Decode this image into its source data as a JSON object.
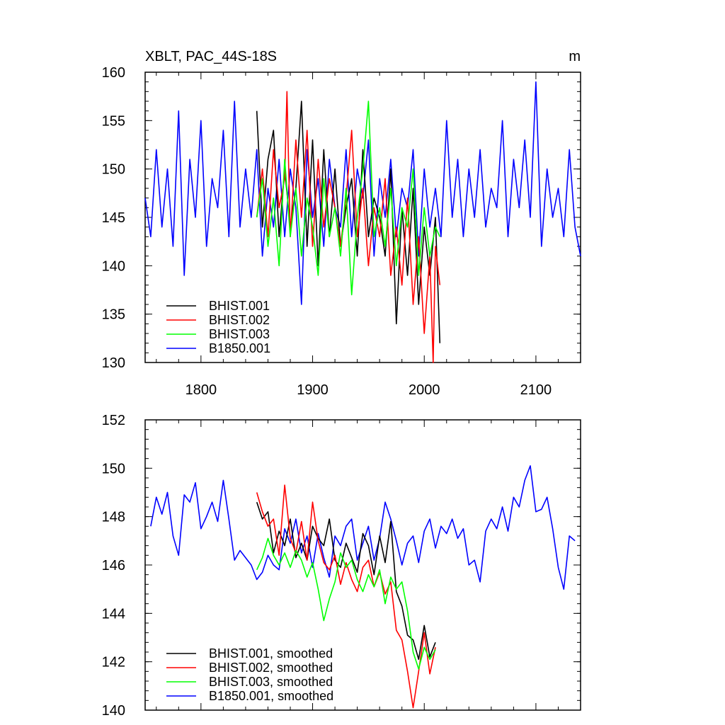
{
  "chart_data": [
    {
      "type": "line",
      "title": "XBLT, PAC_44S-18S",
      "units": "m",
      "xlim": [
        1750,
        2140
      ],
      "ylim": [
        130,
        160
      ],
      "xticks": [
        1800,
        1900,
        2000,
        2100
      ],
      "yticks": [
        130,
        135,
        140,
        145,
        150,
        155,
        160
      ],
      "legend_position": "bottom-left",
      "series": [
        {
          "name": "BHIST.001",
          "color": "#000000",
          "x": [
            1850,
            1855,
            1860,
            1865,
            1870,
            1875,
            1880,
            1885,
            1890,
            1895,
            1900,
            1905,
            1910,
            1915,
            1920,
            1925,
            1930,
            1935,
            1940,
            1945,
            1950,
            1955,
            1960,
            1965,
            1970,
            1975,
            1980,
            1985,
            1990,
            1995,
            2000,
            2005,
            2010,
            2014
          ],
          "y": [
            156,
            144,
            151,
            154,
            143,
            150,
            144,
            148,
            157,
            142,
            153,
            140,
            152,
            143,
            150,
            142,
            146,
            149,
            141,
            152,
            143,
            147,
            145,
            141,
            150,
            134,
            146,
            139,
            148,
            136,
            144,
            139,
            145,
            132
          ]
        },
        {
          "name": "BHIST.002",
          "color": "#ff0000",
          "x": [
            1850,
            1855,
            1860,
            1865,
            1870,
            1875,
            1877,
            1880,
            1885,
            1890,
            1895,
            1900,
            1905,
            1910,
            1915,
            1920,
            1925,
            1930,
            1935,
            1940,
            1945,
            1950,
            1955,
            1960,
            1965,
            1970,
            1975,
            1980,
            1985,
            1990,
            1995,
            2000,
            2005,
            2008,
            2010,
            2014
          ],
          "y": [
            145,
            150,
            143,
            152,
            146,
            149,
            158,
            143,
            153,
            145,
            154,
            142,
            151,
            144,
            149,
            146,
            142,
            147,
            154,
            143,
            148,
            140,
            146,
            143,
            149,
            139,
            144,
            138,
            147,
            136,
            143,
            133,
            141,
            130,
            142,
            138
          ]
        },
        {
          "name": "BHIST.003",
          "color": "#00ff00",
          "x": [
            1850,
            1855,
            1860,
            1865,
            1870,
            1875,
            1880,
            1885,
            1890,
            1895,
            1900,
            1905,
            1910,
            1915,
            1920,
            1925,
            1930,
            1935,
            1940,
            1945,
            1950,
            1955,
            1960,
            1965,
            1970,
            1975,
            1980,
            1985,
            1990,
            1995,
            2000,
            2005,
            2010,
            2014
          ],
          "y": [
            145,
            149,
            142,
            147,
            140,
            151,
            143,
            148,
            141,
            147,
            144,
            139,
            149,
            143,
            146,
            141,
            148,
            137,
            145,
            150,
            157,
            143,
            146,
            142,
            148,
            140,
            146,
            144,
            150,
            139,
            146,
            141,
            144,
            143
          ]
        },
        {
          "name": "B1850.001",
          "color": "#0000ff",
          "x": [
            1750,
            1755,
            1760,
            1765,
            1770,
            1775,
            1780,
            1785,
            1790,
            1795,
            1800,
            1805,
            1810,
            1815,
            1820,
            1825,
            1830,
            1835,
            1840,
            1845,
            1850,
            1855,
            1860,
            1865,
            1870,
            1875,
            1880,
            1885,
            1890,
            1895,
            1900,
            1905,
            1910,
            1915,
            1920,
            1925,
            1930,
            1935,
            1940,
            1945,
            1950,
            1955,
            1960,
            1965,
            1970,
            1975,
            1980,
            1985,
            1990,
            1995,
            2000,
            2005,
            2010,
            2015,
            2020,
            2025,
            2030,
            2035,
            2040,
            2045,
            2050,
            2055,
            2060,
            2065,
            2070,
            2075,
            2080,
            2085,
            2090,
            2095,
            2100,
            2105,
            2110,
            2115,
            2120,
            2125,
            2130,
            2135,
            2140
          ],
          "y": [
            147,
            143,
            152,
            144,
            150,
            142,
            156,
            139,
            151,
            145,
            155,
            142,
            149,
            146,
            154,
            143,
            157,
            144,
            150,
            145,
            152,
            141,
            148,
            144,
            151,
            143,
            150,
            146,
            136,
            152,
            145,
            149,
            142,
            151,
            146,
            144,
            152,
            143,
            150,
            147,
            153,
            141,
            149,
            145,
            151,
            143,
            148,
            146,
            152,
            141,
            150,
            144,
            148,
            143,
            155,
            145,
            151,
            143,
            150,
            145,
            152,
            144,
            148,
            146,
            155,
            143,
            151,
            146,
            153,
            145,
            159,
            142,
            150,
            145,
            148,
            143,
            152,
            144,
            141
          ]
        }
      ]
    },
    {
      "type": "line",
      "xlim": [
        1750,
        2140
      ],
      "ylim": [
        140,
        152
      ],
      "xticks": [
        1800,
        1900,
        2000,
        2100
      ],
      "yticks": [
        140,
        142,
        144,
        146,
        148,
        150,
        152
      ],
      "legend_position": "bottom-left",
      "series": [
        {
          "name": "BHIST.001, smoothed",
          "color": "#000000",
          "x": [
            1850,
            1855,
            1860,
            1865,
            1870,
            1875,
            1880,
            1885,
            1890,
            1895,
            1900,
            1905,
            1910,
            1915,
            1920,
            1925,
            1930,
            1935,
            1940,
            1945,
            1950,
            1955,
            1960,
            1965,
            1970,
            1975,
            1980,
            1985,
            1990,
            1995,
            2000,
            2005,
            2010
          ],
          "y": [
            148.6,
            147.9,
            148.2,
            146.5,
            147.4,
            146.8,
            147.9,
            146.3,
            146.9,
            146.2,
            147.6,
            147.1,
            146.8,
            147.9,
            146.2,
            145.9,
            146.9,
            146.3,
            145.7,
            147.3,
            146.8,
            145.6,
            147.2,
            146.1,
            147.8,
            144.9,
            144.3,
            143.1,
            142.9,
            142.1,
            143.5,
            142.2,
            142.8
          ]
        },
        {
          "name": "BHIST.002, smoothed",
          "color": "#ff0000",
          "x": [
            1850,
            1855,
            1860,
            1865,
            1870,
            1875,
            1880,
            1885,
            1890,
            1895,
            1900,
            1905,
            1910,
            1915,
            1920,
            1925,
            1930,
            1935,
            1940,
            1945,
            1950,
            1955,
            1960,
            1965,
            1970,
            1975,
            1980,
            1985,
            1990,
            1995,
            2000,
            2005,
            2010
          ],
          "y": [
            149.0,
            148.2,
            147.6,
            147.9,
            146.4,
            149.3,
            147.1,
            146.5,
            147.8,
            146.2,
            148.6,
            147.0,
            146.1,
            145.8,
            146.4,
            145.2,
            146.1,
            145.4,
            144.9,
            145.9,
            146.2,
            145.1,
            145.7,
            144.8,
            145.3,
            143.3,
            142.9,
            141.6,
            140.1,
            141.6,
            143.2,
            141.5,
            142.6
          ]
        },
        {
          "name": "BHIST.003, smoothed",
          "color": "#00ff00",
          "x": [
            1850,
            1855,
            1860,
            1865,
            1870,
            1875,
            1880,
            1885,
            1890,
            1895,
            1900,
            1905,
            1910,
            1915,
            1920,
            1925,
            1930,
            1935,
            1940,
            1945,
            1950,
            1955,
            1960,
            1965,
            1970,
            1975,
            1980,
            1985,
            1990,
            1995,
            2000,
            2005,
            2010
          ],
          "y": [
            145.8,
            146.3,
            147.1,
            146.4,
            146.0,
            146.5,
            145.9,
            146.6,
            146.2,
            145.5,
            146.1,
            145.0,
            143.7,
            144.6,
            145.3,
            146.5,
            145.9,
            146.2,
            145.4,
            144.9,
            145.6,
            145.1,
            145.8,
            144.4,
            145.5,
            145.0,
            145.3,
            144.1,
            142.4,
            141.7,
            142.6,
            142.1,
            142.5
          ]
        },
        {
          "name": "B1850.001, smoothed",
          "color": "#0000ff",
          "x": [
            1755,
            1760,
            1765,
            1770,
            1775,
            1780,
            1785,
            1790,
            1795,
            1800,
            1805,
            1810,
            1815,
            1820,
            1825,
            1830,
            1835,
            1840,
            1845,
            1850,
            1855,
            1860,
            1865,
            1870,
            1875,
            1880,
            1885,
            1890,
            1895,
            1900,
            1905,
            1910,
            1915,
            1920,
            1925,
            1930,
            1935,
            1940,
            1945,
            1950,
            1955,
            1960,
            1965,
            1970,
            1975,
            1980,
            1985,
            1990,
            1995,
            2000,
            2005,
            2010,
            2015,
            2020,
            2025,
            2030,
            2035,
            2040,
            2045,
            2050,
            2055,
            2060,
            2065,
            2070,
            2075,
            2080,
            2085,
            2090,
            2095,
            2100,
            2105,
            2110,
            2115,
            2120,
            2125,
            2130,
            2135
          ],
          "y": [
            147.6,
            148.8,
            148.1,
            149.0,
            147.2,
            146.4,
            148.9,
            148.6,
            149.4,
            147.5,
            148.0,
            148.6,
            147.8,
            149.5,
            147.9,
            146.2,
            146.6,
            146.3,
            146.0,
            145.4,
            145.7,
            146.4,
            146.0,
            145.8,
            147.5,
            146.9,
            147.9,
            146.5,
            147.2,
            145.9,
            147.3,
            146.3,
            145.5,
            147.2,
            146.8,
            147.6,
            147.9,
            146.2,
            146.9,
            147.6,
            146.2,
            147.1,
            148.6,
            147.9,
            147.0,
            146.0,
            146.9,
            147.2,
            146.1,
            147.4,
            147.9,
            146.7,
            147.6,
            147.3,
            147.9,
            147.1,
            147.5,
            146.0,
            146.2,
            145.3,
            147.4,
            147.9,
            147.5,
            148.4,
            147.4,
            148.8,
            148.4,
            149.5,
            150.1,
            148.2,
            148.3,
            148.8,
            147.5,
            145.9,
            145.0,
            147.2,
            147.0
          ]
        }
      ]
    }
  ]
}
